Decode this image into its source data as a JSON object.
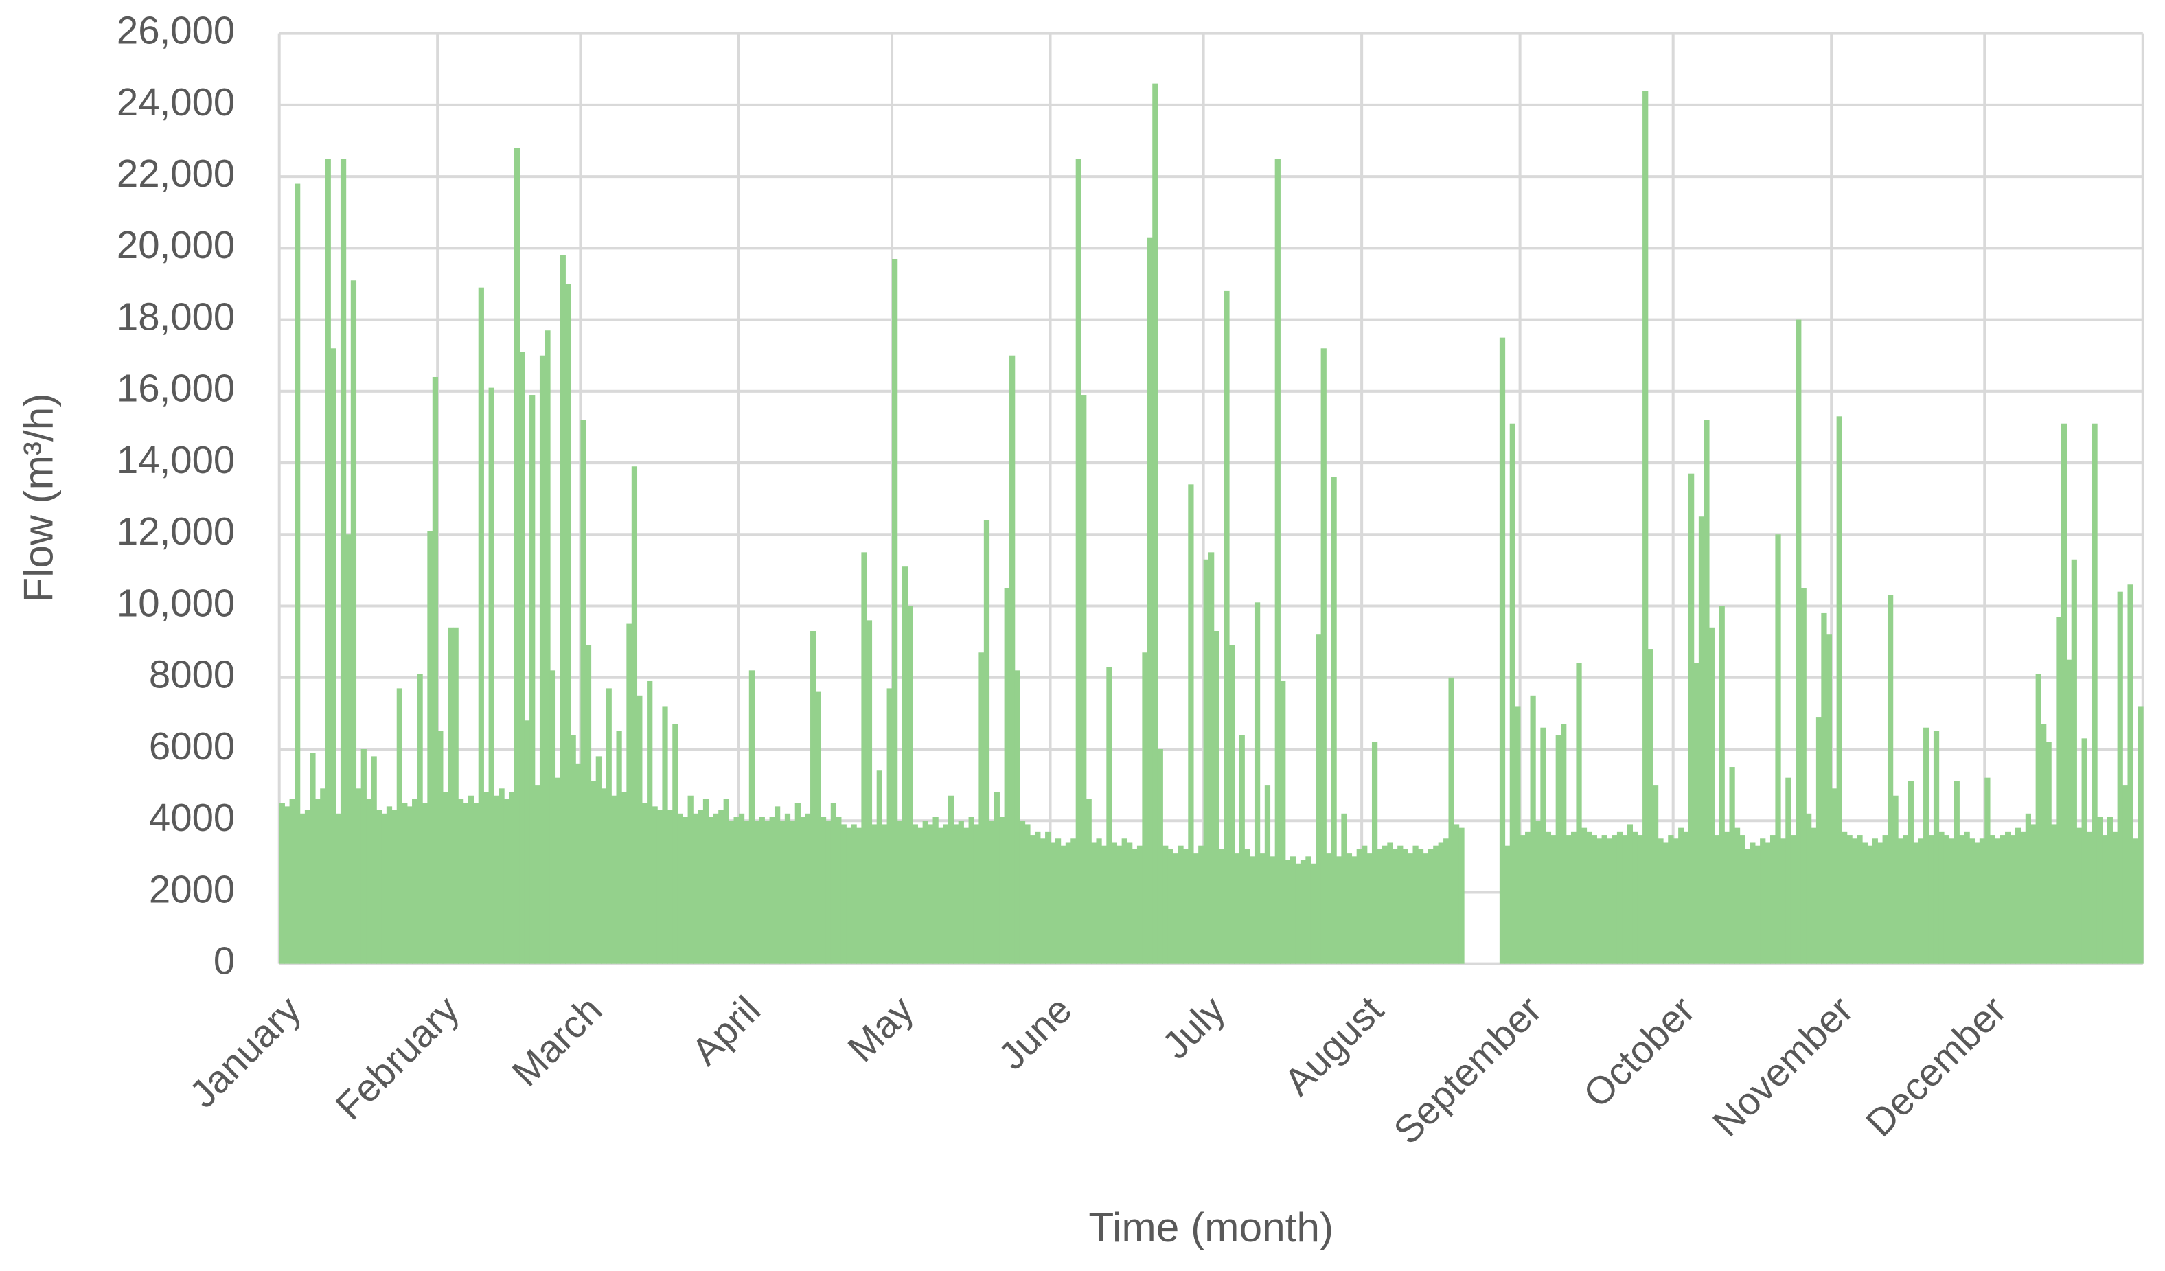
{
  "chart_data": {
    "type": "bar",
    "xlabel": "Time (month)",
    "ylabel": "Flow (m³/h)",
    "color": "#94d18c",
    "grid": true,
    "ylim": [
      0,
      26000
    ],
    "yticks": [
      0,
      2000,
      4000,
      6000,
      8000,
      {
        "value": 10000,
        "label": "10,000"
      },
      {
        "value": 12000,
        "label": "12,000"
      },
      {
        "value": 14000,
        "label": "14,000"
      },
      {
        "value": 16000,
        "label": "16,000"
      },
      {
        "value": 18000,
        "label": "18,000"
      },
      {
        "value": 20000,
        "label": "20,000"
      },
      {
        "value": 22000,
        "label": "22,000"
      },
      {
        "value": 24000,
        "label": "24,000"
      },
      {
        "value": 26000,
        "label": "26,000"
      }
    ],
    "categories": [
      "January",
      null,
      null,
      null,
      null,
      null,
      null,
      null,
      null,
      null,
      null,
      null,
      null,
      null,
      null,
      null,
      null,
      null,
      null,
      null,
      null,
      null,
      null,
      null,
      null,
      null,
      null,
      null,
      null,
      null,
      null,
      "February",
      null,
      null,
      null,
      null,
      null,
      null,
      null,
      null,
      null,
      null,
      null,
      null,
      null,
      null,
      null,
      null,
      null,
      null,
      null,
      null,
      null,
      null,
      null,
      null,
      null,
      null,
      null,
      "March",
      null,
      null,
      null,
      null,
      null,
      null,
      null,
      null,
      null,
      null,
      null,
      null,
      null,
      null,
      null,
      null,
      null,
      null,
      null,
      null,
      null,
      null,
      null,
      null,
      null,
      null,
      null,
      null,
      null,
      null,
      "April",
      null,
      null,
      null,
      null,
      null,
      null,
      null,
      null,
      null,
      null,
      null,
      null,
      null,
      null,
      null,
      null,
      null,
      null,
      null,
      null,
      null,
      null,
      null,
      null,
      null,
      null,
      null,
      null,
      null,
      "May",
      null,
      null,
      null,
      null,
      null,
      null,
      null,
      null,
      null,
      null,
      null,
      null,
      null,
      null,
      null,
      null,
      null,
      null,
      null,
      null,
      null,
      null,
      null,
      null,
      null,
      null,
      null,
      null,
      null,
      null,
      "June",
      null,
      null,
      null,
      null,
      null,
      null,
      null,
      null,
      null,
      null,
      null,
      null,
      null,
      null,
      null,
      null,
      null,
      null,
      null,
      null,
      null,
      null,
      null,
      null,
      null,
      null,
      null,
      null,
      null,
      "July",
      null,
      null,
      null,
      null,
      null,
      null,
      null,
      null,
      null,
      null,
      null,
      null,
      null,
      null,
      null,
      null,
      null,
      null,
      null,
      null,
      null,
      null,
      null,
      null,
      null,
      null,
      null,
      null,
      null,
      null,
      "August",
      null,
      null,
      null,
      null,
      null,
      null,
      null,
      null,
      null,
      null,
      null,
      null,
      null,
      null,
      null,
      null,
      null,
      null,
      null,
      null,
      null,
      null,
      null,
      null,
      null,
      null,
      null,
      null,
      null,
      null,
      "September",
      null,
      null,
      null,
      null,
      null,
      null,
      null,
      null,
      null,
      null,
      null,
      null,
      null,
      null,
      null,
      null,
      null,
      null,
      null,
      null,
      null,
      null,
      null,
      null,
      null,
      null,
      null,
      null,
      null,
      "October",
      null,
      null,
      null,
      null,
      null,
      null,
      null,
      null,
      null,
      null,
      null,
      null,
      null,
      null,
      null,
      null,
      null,
      null,
      null,
      null,
      null,
      null,
      null,
      null,
      null,
      null,
      null,
      null,
      null,
      null,
      "November",
      null,
      null,
      null,
      null,
      null,
      null,
      null,
      null,
      null,
      null,
      null,
      null,
      null,
      null,
      null,
      null,
      null,
      null,
      null,
      null,
      null,
      null,
      null,
      null,
      null,
      null,
      null,
      null,
      null,
      "December",
      null,
      null,
      null,
      null,
      null,
      null,
      null,
      null,
      null,
      null,
      null,
      null,
      null,
      null,
      null,
      null,
      null,
      null,
      null,
      null,
      null,
      null,
      null,
      null,
      null,
      null,
      null,
      null,
      null,
      null
    ],
    "values": [
      4500,
      4400,
      4600,
      21800,
      4200,
      4300,
      5900,
      4600,
      4900,
      22500,
      17200,
      4200,
      22500,
      12000,
      19100,
      4900,
      6000,
      4600,
      5800,
      4300,
      4200,
      4400,
      4300,
      7700,
      4500,
      4400,
      4600,
      8100,
      4500,
      12100,
      16400,
      6500,
      4800,
      9400,
      9400,
      4600,
      4500,
      4700,
      4500,
      18900,
      4800,
      16100,
      4700,
      4900,
      4600,
      4800,
      22800,
      17100,
      6800,
      15900,
      5000,
      17000,
      17700,
      8200,
      5200,
      19800,
      19000,
      6400,
      5600,
      15200,
      8900,
      5100,
      5800,
      4900,
      7700,
      4700,
      6500,
      4800,
      9500,
      13900,
      7500,
      4500,
      7900,
      4400,
      4300,
      7200,
      4300,
      6700,
      4200,
      4100,
      4700,
      4200,
      4300,
      4600,
      4100,
      4200,
      4300,
      4600,
      4000,
      4100,
      4200,
      4000,
      8200,
      4000,
      4100,
      4000,
      4100,
      4400,
      4000,
      4200,
      4000,
      4500,
      4100,
      4200,
      9300,
      7600,
      4100,
      4000,
      4500,
      4100,
      3900,
      3800,
      3900,
      3800,
      11500,
      9600,
      3900,
      5400,
      3900,
      7700,
      19700,
      4000,
      11100,
      10000,
      3900,
      3800,
      4000,
      3900,
      4100,
      3800,
      3900,
      4700,
      3900,
      4000,
      3800,
      4100,
      3900,
      8700,
      12400,
      4000,
      4800,
      4100,
      10500,
      17000,
      8200,
      4000,
      3900,
      3600,
      3700,
      3500,
      3700,
      3400,
      3500,
      3300,
      3400,
      3500,
      22500,
      15900,
      4600,
      3400,
      3500,
      3300,
      8300,
      3400,
      3300,
      3500,
      3400,
      3200,
      3300,
      8700,
      20300,
      24600,
      6000,
      3300,
      3200,
      3100,
      3300,
      3200,
      13400,
      3100,
      3300,
      11300,
      11500,
      9300,
      3200,
      18800,
      8900,
      3100,
      6400,
      3200,
      3000,
      10100,
      3100,
      5000,
      3000,
      22500,
      7900,
      2900,
      3000,
      2800,
      2900,
      3000,
      2800,
      9200,
      17200,
      3100,
      13600,
      3000,
      4200,
      3100,
      3000,
      3200,
      3300,
      3100,
      6200,
      3200,
      3300,
      3400,
      3200,
      3300,
      3200,
      3100,
      3300,
      3200,
      3100,
      3200,
      3300,
      3400,
      3500,
      8000,
      3900,
      3800,
      null,
      null,
      null,
      null,
      null,
      null,
      null,
      17500,
      3300,
      15100,
      7200,
      3600,
      3700,
      7500,
      4000,
      6600,
      3700,
      3600,
      6400,
      6700,
      3600,
      3700,
      8400,
      3800,
      3700,
      3600,
      3500,
      3600,
      3500,
      3600,
      3700,
      3600,
      3900,
      3700,
      3600,
      24400,
      8800,
      5000,
      3500,
      3400,
      3600,
      3500,
      3800,
      3700,
      13700,
      8400,
      12500,
      15200,
      9400,
      3600,
      10000,
      3700,
      5500,
      3800,
      3600,
      3200,
      3400,
      3300,
      3500,
      3400,
      3600,
      12000,
      3500,
      5200,
      3600,
      18000,
      10500,
      4200,
      3800,
      6900,
      9800,
      9200,
      4900,
      15300,
      3700,
      3600,
      3500,
      3600,
      3400,
      3300,
      3500,
      3400,
      3600,
      10300,
      4700,
      3500,
      3600,
      5100,
      3400,
      3500,
      6600,
      3600,
      6500,
      3700,
      3600,
      3500,
      5100,
      3600,
      3700,
      3500,
      3400,
      3500,
      5200,
      3600,
      3500,
      3600,
      3700,
      3600,
      3800,
      3700,
      4200,
      3900,
      8100,
      6700,
      6200,
      3900,
      9700,
      15100,
      8500,
      11300,
      3800,
      6300,
      3700,
      15100,
      4100,
      3600,
      4100,
      3700,
      10400,
      5000,
      10600,
      3500,
      7200
    ]
  }
}
